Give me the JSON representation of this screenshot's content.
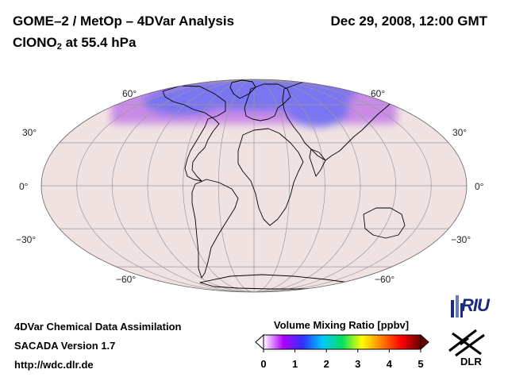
{
  "header": {
    "title": "GOME–2 / MetOp – 4DVar Analysis",
    "datetime": "Dec 29, 2008, 12:00 GMT",
    "species_main": "ClONO",
    "species_sub": "2",
    "species_rest": " at 55.4 hPa"
  },
  "map": {
    "projection": "Mollweide",
    "parallels_deg": [
      -60,
      -30,
      0,
      30,
      60
    ],
    "meridian_step_deg": 30,
    "lat_labels": {
      "n60": "60°",
      "n30": "30°",
      "eq": "0°",
      "s30": "−30°",
      "s60": "−60°"
    },
    "colors": {
      "background_field": "#f1e2e2",
      "high_latitude_band": "#c98be6",
      "core_enhancement": "#7a74f0",
      "grid": "#9a9a9a",
      "coast": "#000000"
    }
  },
  "colorbar": {
    "title": "Volume Mixing Ratio [ppbv]",
    "min": 0,
    "max": 5,
    "ticks": [
      "0",
      "1",
      "2",
      "3",
      "4",
      "5"
    ],
    "stops": [
      "#ffffff",
      "#b000ff",
      "#3030ff",
      "#00c8ff",
      "#00e060",
      "#ffff00",
      "#ff8000",
      "#ff0000",
      "#6a0000"
    ]
  },
  "footer": {
    "line1": "4DVar Chemical Data Assimilation",
    "line2": "SACADA Version 1.7",
    "line3": "http://wdc.dlr.de"
  },
  "logos": {
    "riu": "RIU",
    "dlr": "DLR"
  }
}
